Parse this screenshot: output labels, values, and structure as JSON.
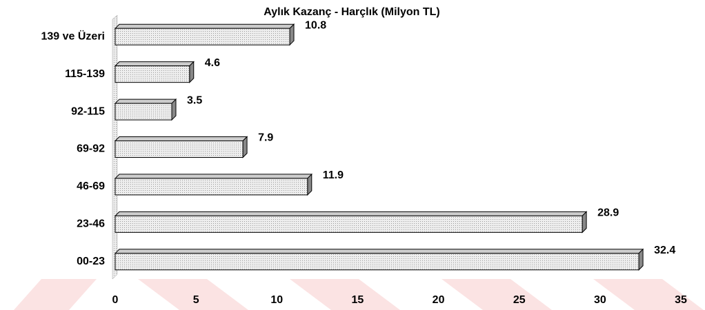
{
  "chart_data": {
    "type": "bar",
    "orientation": "horizontal",
    "title": "Aylık Kazanç - Harçlık (Milyon TL)",
    "categories": [
      "139 ve Üzeri",
      "115-139",
      "92-115",
      "69-92",
      "46-69",
      "23-46",
      "00-23"
    ],
    "values": [
      10.8,
      4.6,
      3.5,
      7.9,
      11.9,
      28.9,
      32.4
    ],
    "color": "#e4e4e4",
    "xlim": [
      0,
      35
    ],
    "xticks": [
      0,
      5,
      10,
      15,
      20,
      25,
      30,
      35
    ]
  }
}
